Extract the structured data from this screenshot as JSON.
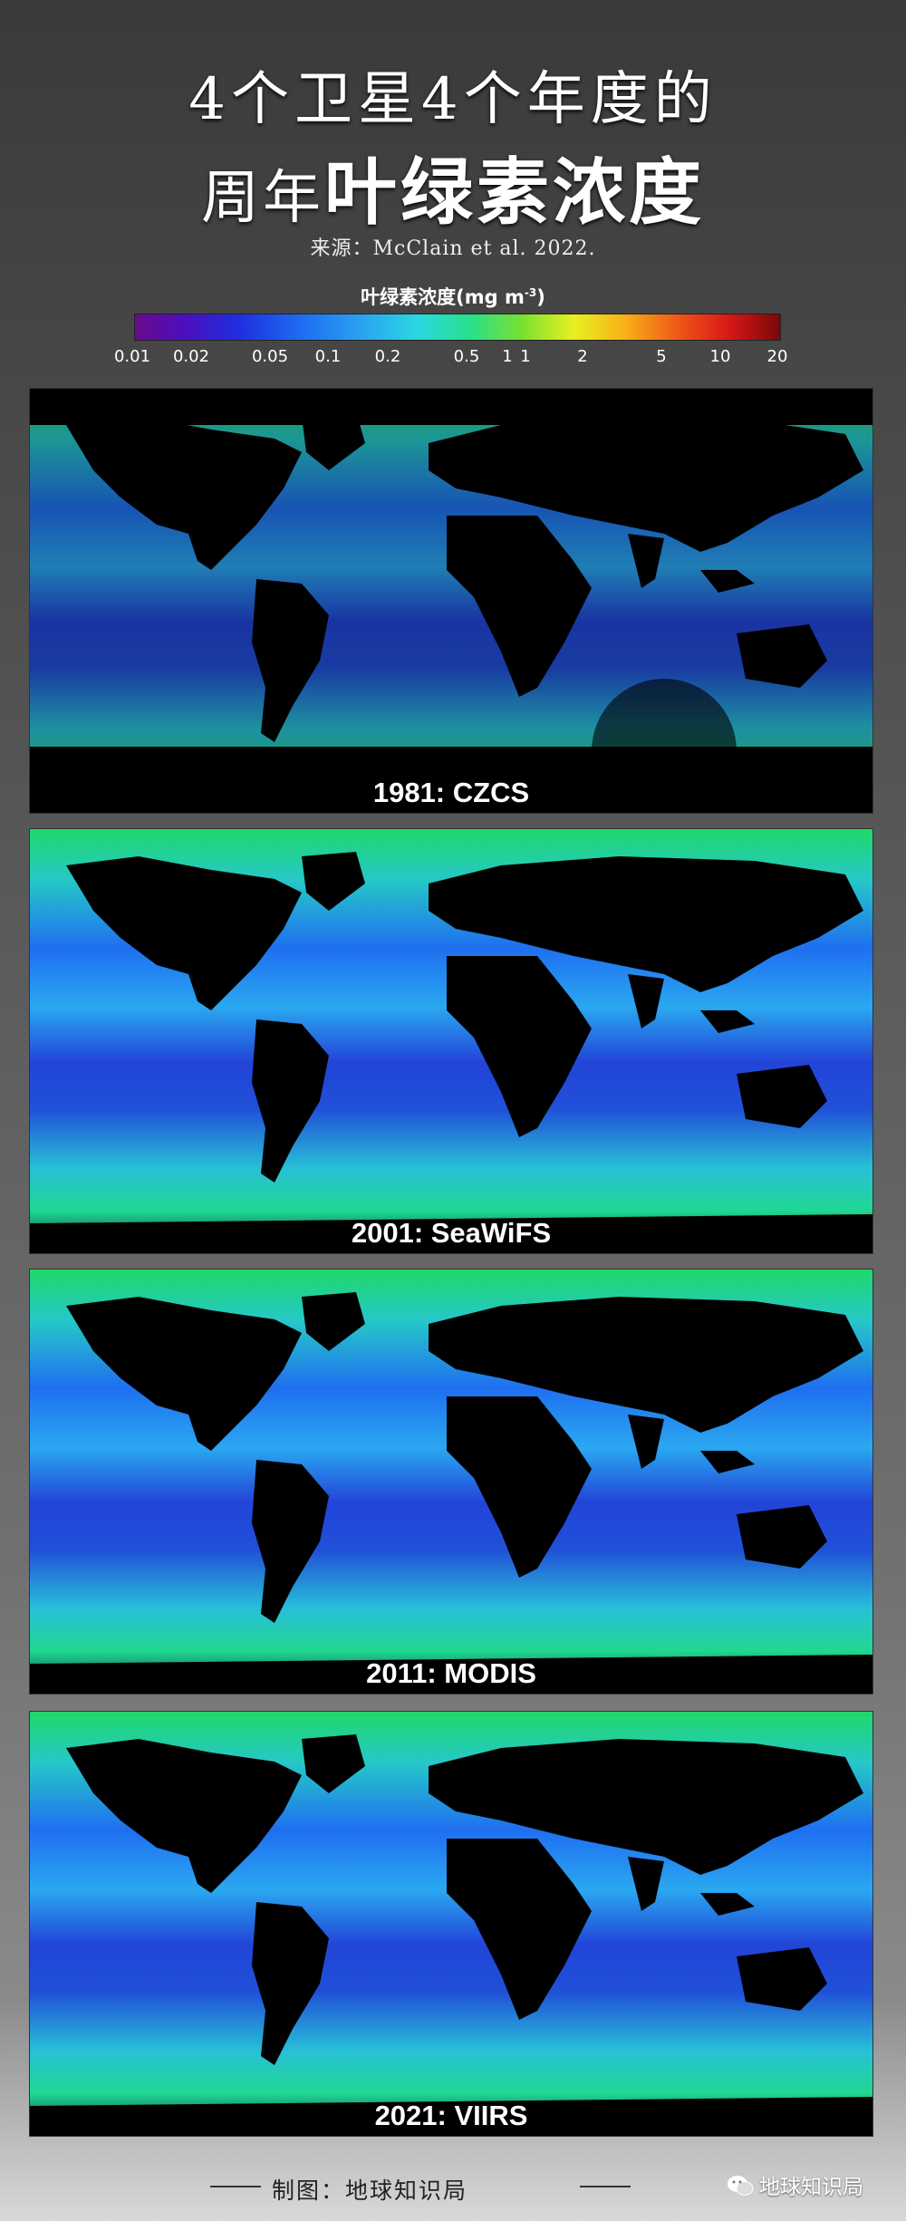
{
  "title": {
    "line1": "4个卫星4个年度的",
    "line2_prefix": "周年",
    "line2_strong": "叶绿素浓度"
  },
  "source": "来源：McClain et al. 2022.",
  "colorbar": {
    "title": "叶绿素浓度(mg m",
    "title_sup": "-3",
    "title_close": ")",
    "ticks": [
      "0.01",
      "0.02",
      "0.05",
      "0.1",
      "0.2",
      "0.5",
      "1",
      "1",
      "2",
      "5",
      "10",
      "20"
    ],
    "colors": [
      "#6a0a8a",
      "#1e2ee0",
      "#2aa8f0",
      "#28e08a",
      "#e8f020",
      "#f05818",
      "#7a0808"
    ]
  },
  "maps": [
    {
      "label": "1981: CZCS"
    },
    {
      "label": "2001: SeaWiFS"
    },
    {
      "label": "2011: MODIS"
    },
    {
      "label": "2021: VIIRS"
    }
  ],
  "footer": {
    "credit": "制图：地球知识局",
    "wechat": "地球知识局",
    "wechat_icon": "wechat-icon"
  }
}
